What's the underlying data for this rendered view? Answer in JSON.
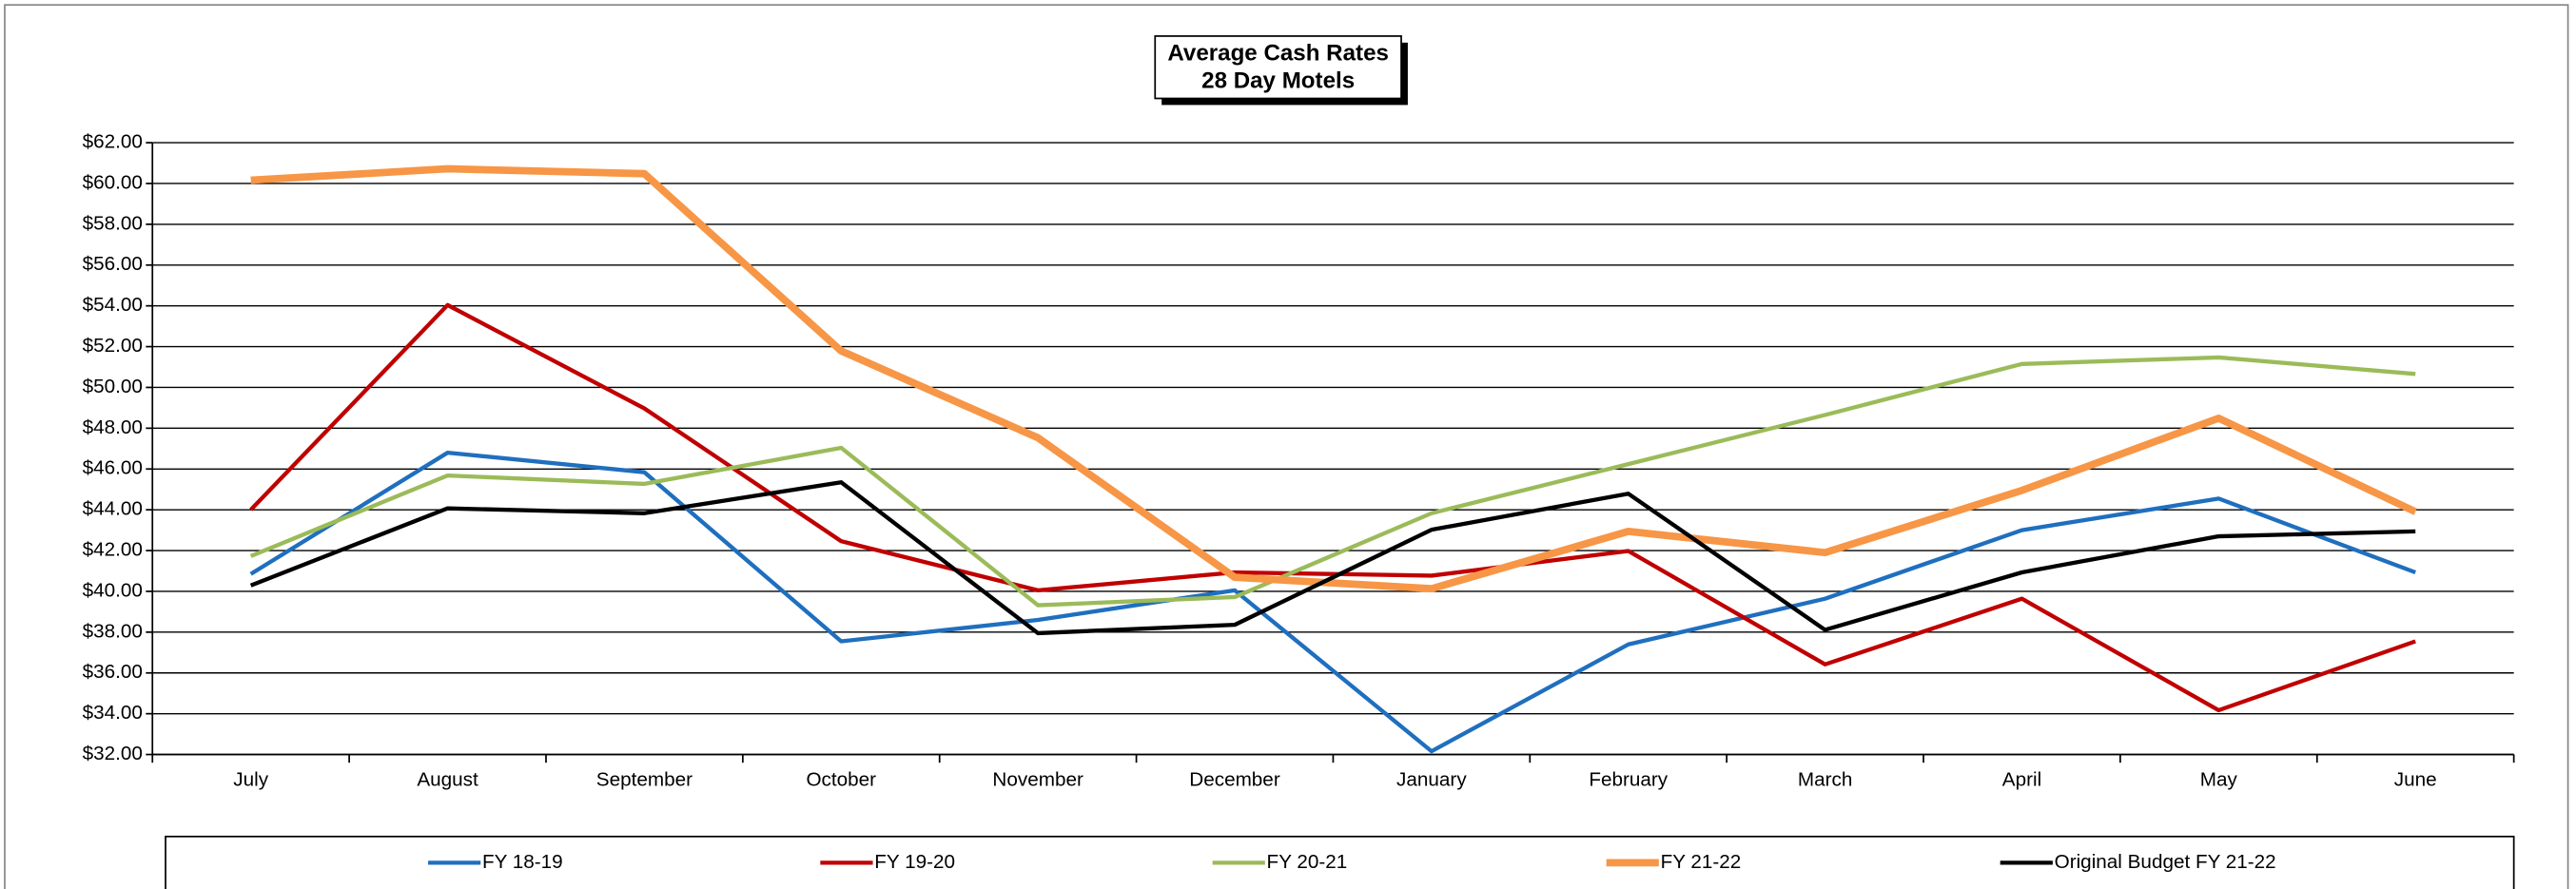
{
  "chart_data": {
    "type": "line",
    "title": "Average Cash Rates",
    "subtitle": "28 Day Motels",
    "categories": [
      "July",
      "August",
      "September",
      "October",
      "November",
      "December",
      "January",
      "February",
      "March",
      "April",
      "May",
      "June"
    ],
    "series": [
      {
        "name": "FY 18-19",
        "color": "#1f6fbf",
        "width": 2.5,
        "values": [
          40.85,
          46.8,
          45.84,
          37.55,
          38.6,
          40.05,
          32.16,
          37.4,
          39.64,
          43.0,
          44.55,
          40.93
        ]
      },
      {
        "name": "FY 19-20",
        "color": "#c00000",
        "width": 2.5,
        "values": [
          44.0,
          54.04,
          48.97,
          42.46,
          40.05,
          40.93,
          40.77,
          41.98,
          36.42,
          39.64,
          34.17,
          37.55
        ]
      },
      {
        "name": "FY 20-21",
        "color": "#9bbb59",
        "width": 2.5,
        "values": [
          41.73,
          45.68,
          45.27,
          47.04,
          39.32,
          39.72,
          43.83,
          46.24,
          48.65,
          51.15,
          51.47,
          50.66
        ]
      },
      {
        "name": "FY 21-22",
        "color": "#f79646",
        "width": 4.5,
        "values": [
          60.16,
          60.72,
          60.48,
          51.79,
          47.53,
          40.69,
          40.13,
          42.94,
          41.9,
          44.95,
          48.49,
          43.9
        ]
      },
      {
        "name": "Original Budget FY 21-22",
        "color": "#000000",
        "width": 2.5,
        "values": [
          40.29,
          44.07,
          43.83,
          45.35,
          37.95,
          38.36,
          43.02,
          44.79,
          38.11,
          40.93,
          42.7,
          42.94
        ]
      }
    ],
    "ylim": [
      32,
      62
    ],
    "yticks": [
      {
        "value": 32,
        "label": "$32.00"
      },
      {
        "value": 34,
        "label": "$34.00"
      },
      {
        "value": 36,
        "label": "$36.00"
      },
      {
        "value": 38,
        "label": "$38.00"
      },
      {
        "value": 40,
        "label": "$40.00"
      },
      {
        "value": 42,
        "label": "$42.00"
      },
      {
        "value": 44,
        "label": "$44.00"
      },
      {
        "value": 46,
        "label": "$46.00"
      },
      {
        "value": 48,
        "label": "$48.00"
      },
      {
        "value": 50,
        "label": "$50.00"
      },
      {
        "value": 52,
        "label": "$52.00"
      },
      {
        "value": 54,
        "label": "$54.00"
      },
      {
        "value": 56,
        "label": "$56.00"
      },
      {
        "value": 58,
        "label": "$58.00"
      },
      {
        "value": 60,
        "label": "$60.00"
      },
      {
        "value": 62,
        "label": "$62.00"
      }
    ],
    "grid": true,
    "legend": "bottom"
  }
}
